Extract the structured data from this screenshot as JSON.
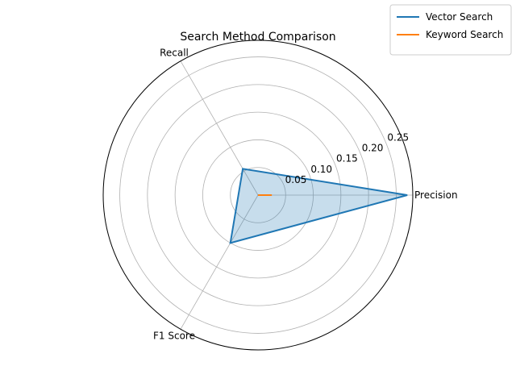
{
  "chart_data": {
    "type": "radar",
    "title": "Search Method Comparison",
    "categories": [
      "Precision",
      "Recall",
      "F1 Score"
    ],
    "rlim": [
      0,
      0.28
    ],
    "rticks": [
      0.05,
      0.1,
      0.15,
      0.2,
      0.25
    ],
    "rtick_labels": [
      "0.05",
      "0.10",
      "0.15",
      "0.20",
      "0.25"
    ],
    "grid": true,
    "legend_position": "top-right",
    "series": [
      {
        "name": "Vector Search",
        "values": [
          0.27,
          0.055,
          0.1
        ],
        "color": "#1f77b4",
        "fill": true
      },
      {
        "name": "Keyword Search",
        "values": [
          0.025,
          0.0,
          0.0
        ],
        "color": "#ff7f0e",
        "fill": false
      }
    ]
  }
}
